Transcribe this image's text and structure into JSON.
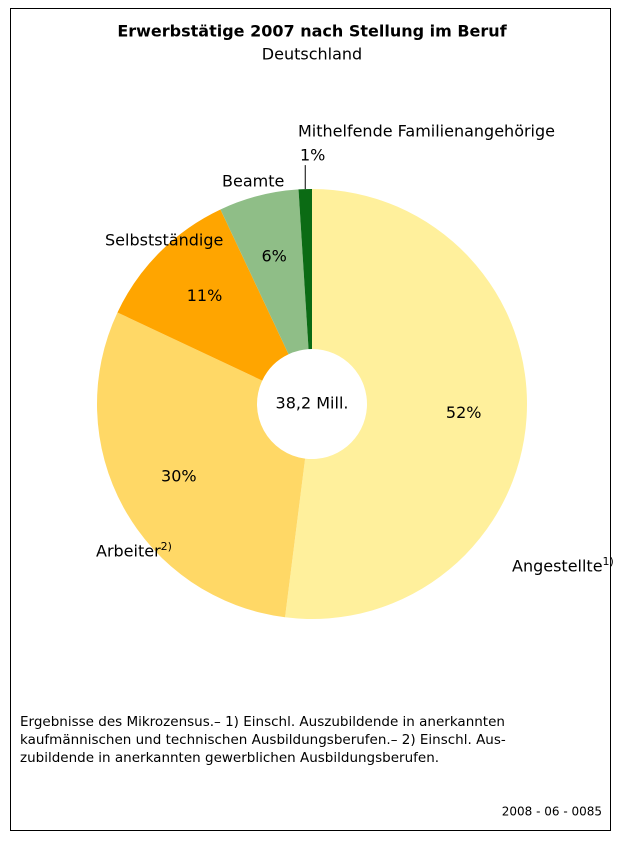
{
  "chart_data": {
    "type": "donut",
    "title": "Erwerbstätige 2007 nach Stellung im Beruf",
    "subtitle": "Deutschland",
    "center_label": "38,2 Mill.",
    "categories": [
      "Angestellte",
      "Arbeiter",
      "Selbstständige",
      "Beamte",
      "Mithelfende Familienangehörige"
    ],
    "category_notes": [
      "1)",
      "2)",
      null,
      null,
      null
    ],
    "values": [
      52,
      30,
      11,
      6,
      1
    ],
    "value_labels": [
      "52%",
      "30%",
      "11%",
      "6%",
      "1%"
    ],
    "colors": [
      "#fff09c",
      "#ffd866",
      "#ffa500",
      "#8fbe87",
      "#0b6b14"
    ],
    "notes": [
      "Ergebnisse des Mikrozensus.– 1) Einschl. Auszubildende in anerkannten",
      "kaufmännischen und technischen Ausbildungsberufen.– 2) Einschl. Aus-",
      "zubildende in anerkannten gewerblichen Ausbildungsberufen."
    ],
    "source": "2008 - 06 - 0085"
  }
}
